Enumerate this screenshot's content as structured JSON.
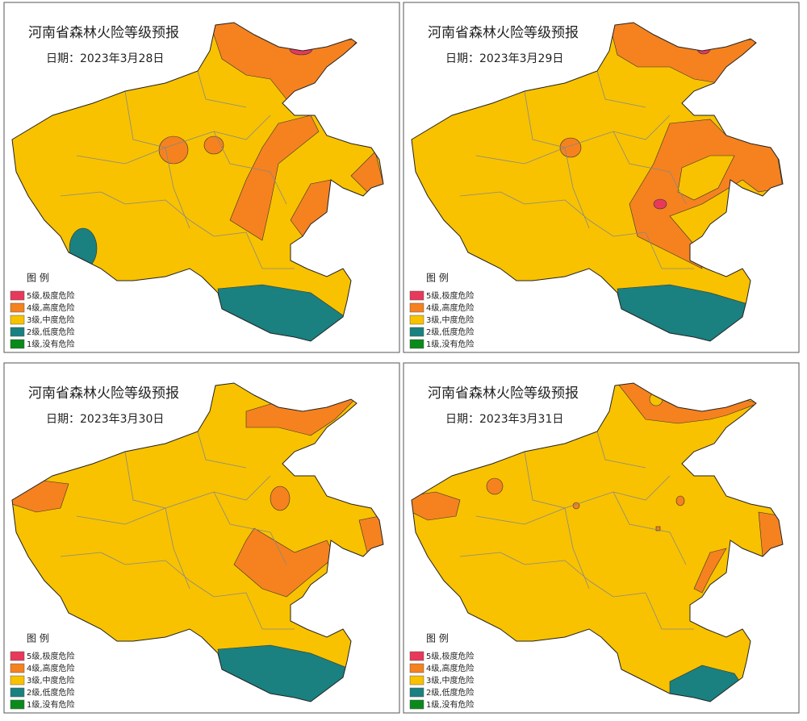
{
  "panels": [
    {
      "title": "河南省森林火险等级预报",
      "date": "日期：2023年3月28日",
      "legend": {
        "title": "图 例",
        "items": [
          "5级,极度危险",
          "4级,高度危险",
          "3级,中度危险",
          "2级,低度危险",
          "1级,没有危险"
        ]
      }
    },
    {
      "title": "河南省森林火险等级预报",
      "date": "日期：2023年3月29日",
      "legend": {
        "title": "图 例",
        "items": [
          "5级,极度危险",
          "4级,高度危险",
          "3级,中度危险",
          "2级,低度危险",
          "1级,没有危险"
        ]
      }
    },
    {
      "title": "河南省森林火险等级预报",
      "date": "日期：2023年3月30日",
      "legend": {
        "title": "图 例",
        "items": [
          "5级,极度危险",
          "4级,高度危险",
          "3级,中度危险",
          "2级,低度危险",
          "1级,没有危险"
        ]
      }
    },
    {
      "title": "河南省森林火险等级预报",
      "date": "日期：2023年3月31日",
      "legend": {
        "title": "图 例",
        "items": [
          "5级,极度危险",
          "4级,高度危险",
          "3级,中度危险",
          "2级,低度危险",
          "1级,没有危险"
        ]
      }
    }
  ]
}
